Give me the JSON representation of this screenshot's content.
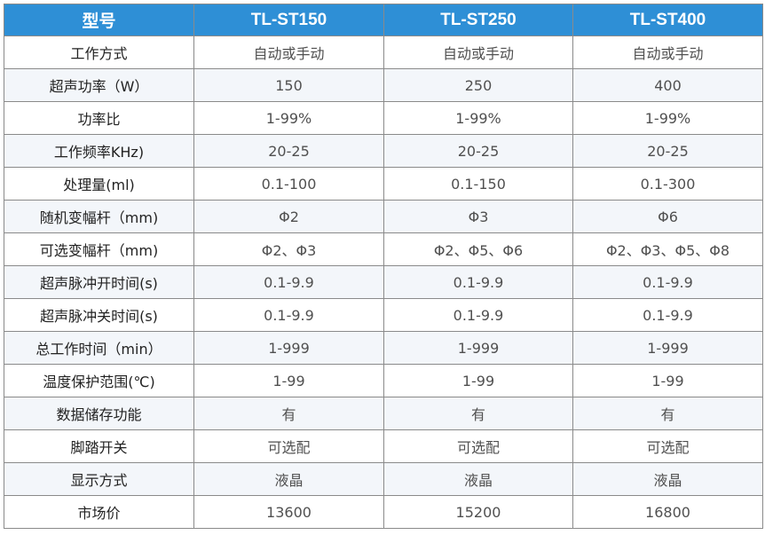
{
  "table": {
    "header": [
      "型号",
      "TL-ST150",
      "TL-ST250",
      "TL-ST400"
    ],
    "rows": [
      [
        "工作方式",
        "自动或手动",
        "自动或手动",
        "自动或手动"
      ],
      [
        "超声功率（W）",
        "150",
        "250",
        "400"
      ],
      [
        "功率比",
        "1-99%",
        "1-99%",
        "1-99%"
      ],
      [
        "工作频率KHz)",
        "20-25",
        "20-25",
        "20-25"
      ],
      [
        "处理量(ml)",
        "0.1-100",
        "0.1-150",
        "0.1-300"
      ],
      [
        "随机变幅杆（mm)",
        "Φ2",
        "Φ3",
        "Φ6"
      ],
      [
        "可选变幅杆（mm)",
        "Φ2、Φ3",
        "Φ2、Φ5、Φ6",
        "Φ2、Φ3、Φ5、Φ8"
      ],
      [
        "超声脉冲开时间(s)",
        "0.1-9.9",
        "0.1-9.9",
        "0.1-9.9"
      ],
      [
        "超声脉冲关时间(s)",
        "0.1-9.9",
        "0.1-9.9",
        "0.1-9.9"
      ],
      [
        "总工作时间（min）",
        "1-999",
        "1-999",
        "1-999"
      ],
      [
        "温度保护范围(℃)",
        "1-99",
        "1-99",
        "1-99"
      ],
      [
        "数据储存功能",
        "有",
        "有",
        "有"
      ],
      [
        "脚踏开关",
        "可选配",
        "可选配",
        "可选配"
      ],
      [
        "显示方式",
        "液晶",
        "液晶",
        "液晶"
      ],
      [
        "市场价",
        "13600",
        "15200",
        "16800"
      ]
    ]
  },
  "colors": {
    "header_bg": "#2e8fd6",
    "header_text": "#ffffff",
    "border": "#8a8a8a",
    "text": "#505050"
  }
}
